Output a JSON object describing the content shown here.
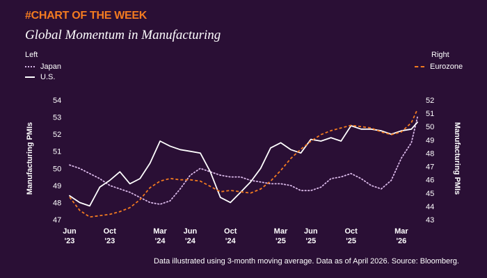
{
  "kicker": "#CHART OF THE WEEK",
  "footer": "Data illustrated using 3-month moving average. Data as of April 2026. Source: Bloomberg.",
  "colors": {
    "background": "#2a0f35",
    "kicker": "#f47b20",
    "japan": "#d9b8e8",
    "us": "#ffffff",
    "eurozone": "#f47b20"
  },
  "chart_data": {
    "type": "line",
    "title": "Global Momentum in Manufacturing",
    "legend": {
      "left_header": "Left",
      "right_header": "Right",
      "placement": "top"
    },
    "left_axis": {
      "label": "Manufacturing PMIs",
      "ylim": [
        47,
        54
      ],
      "ticks": [
        47,
        48,
        49,
        50,
        51,
        52,
        53,
        54
      ]
    },
    "right_axis": {
      "label": "Manufacturing PMIs",
      "ylim": [
        43,
        52
      ],
      "ticks": [
        43,
        44,
        45,
        46,
        47,
        48,
        49,
        50,
        51,
        52
      ]
    },
    "x_ticks": [
      {
        "month": 0,
        "line1": "Jun",
        "line2": "'23"
      },
      {
        "month": 4,
        "line1": "Oct",
        "line2": "'23"
      },
      {
        "month": 9,
        "line1": "Mar",
        "line2": "'24"
      },
      {
        "month": 12,
        "line1": "Jun",
        "line2": "'24"
      },
      {
        "month": 16,
        "line1": "Oct",
        "line2": "'24"
      },
      {
        "month": 21,
        "line1": "Mar",
        "line2": "'25"
      },
      {
        "month": 24,
        "line1": "Jun",
        "line2": "'25"
      },
      {
        "month": 28,
        "line1": "Oct",
        "line2": "'25"
      },
      {
        "month": 33,
        "line1": "Mar",
        "line2": "'26"
      }
    ],
    "x_range": [
      0,
      34.6
    ],
    "series": [
      {
        "name": "Japan",
        "axis": "left",
        "style": "dotted",
        "color": "#d9b8e8",
        "values": [
          [
            0,
            50.2
          ],
          [
            1,
            50.0
          ],
          [
            2,
            49.7
          ],
          [
            3,
            49.4
          ],
          [
            4,
            49.0
          ],
          [
            5,
            48.8
          ],
          [
            6,
            48.6
          ],
          [
            7,
            48.3
          ],
          [
            8,
            48.0
          ],
          [
            9,
            47.9
          ],
          [
            10,
            48.1
          ],
          [
            11,
            48.8
          ],
          [
            12,
            49.6
          ],
          [
            13,
            50.0
          ],
          [
            14,
            49.8
          ],
          [
            15,
            49.6
          ],
          [
            16,
            49.5
          ],
          [
            17,
            49.5
          ],
          [
            18,
            49.3
          ],
          [
            19,
            49.2
          ],
          [
            20,
            49.1
          ],
          [
            21,
            49.1
          ],
          [
            22,
            49.0
          ],
          [
            23,
            48.7
          ],
          [
            24,
            48.7
          ],
          [
            25,
            48.9
          ],
          [
            26,
            49.4
          ],
          [
            27,
            49.5
          ],
          [
            28,
            49.7
          ],
          [
            29,
            49.4
          ],
          [
            30,
            49.0
          ],
          [
            31,
            48.8
          ],
          [
            32,
            49.3
          ],
          [
            33,
            50.6
          ],
          [
            34,
            51.5
          ],
          [
            34.6,
            53.0
          ]
        ]
      },
      {
        "name": "U.S.",
        "axis": "left",
        "style": "solid",
        "color": "#ffffff",
        "values": [
          [
            0,
            48.4
          ],
          [
            1,
            48.0
          ],
          [
            2,
            47.8
          ],
          [
            3,
            48.9
          ],
          [
            4,
            49.3
          ],
          [
            5,
            49.8
          ],
          [
            6,
            49.1
          ],
          [
            7,
            49.4
          ],
          [
            8,
            50.3
          ],
          [
            9,
            51.6
          ],
          [
            10,
            51.3
          ],
          [
            11,
            51.1
          ],
          [
            12,
            51.0
          ],
          [
            13,
            50.9
          ],
          [
            14,
            49.8
          ],
          [
            15,
            48.3
          ],
          [
            16,
            48.0
          ],
          [
            17,
            48.6
          ],
          [
            18,
            49.2
          ],
          [
            19,
            50.0
          ],
          [
            20,
            51.2
          ],
          [
            21,
            51.5
          ],
          [
            22,
            51.1
          ],
          [
            23,
            50.9
          ],
          [
            24,
            51.7
          ],
          [
            25,
            51.6
          ],
          [
            26,
            51.8
          ],
          [
            27,
            51.6
          ],
          [
            28,
            52.5
          ],
          [
            29,
            52.3
          ],
          [
            30,
            52.3
          ],
          [
            31,
            52.2
          ],
          [
            32,
            52.0
          ],
          [
            33,
            52.2
          ],
          [
            34,
            52.3
          ],
          [
            34.6,
            52.7
          ]
        ]
      },
      {
        "name": "Eurozone",
        "axis": "right",
        "style": "dashed",
        "color": "#f47b20",
        "values": [
          [
            0,
            44.7
          ],
          [
            1,
            43.7
          ],
          [
            2,
            43.2
          ],
          [
            3,
            43.3
          ],
          [
            4,
            43.4
          ],
          [
            5,
            43.6
          ],
          [
            6,
            43.9
          ],
          [
            7,
            44.5
          ],
          [
            8,
            45.4
          ],
          [
            9,
            45.9
          ],
          [
            10,
            46.1
          ],
          [
            11,
            46.0
          ],
          [
            12,
            46.0
          ],
          [
            13,
            45.9
          ],
          [
            14,
            45.5
          ],
          [
            15,
            45.1
          ],
          [
            16,
            45.2
          ],
          [
            17,
            45.1
          ],
          [
            18,
            45.0
          ],
          [
            19,
            45.3
          ],
          [
            20,
            45.9
          ],
          [
            21,
            46.7
          ],
          [
            22,
            47.6
          ],
          [
            23,
            48.3
          ],
          [
            24,
            48.9
          ],
          [
            25,
            49.4
          ],
          [
            26,
            49.7
          ],
          [
            27,
            49.9
          ],
          [
            28,
            50.1
          ],
          [
            29,
            50.0
          ],
          [
            30,
            49.9
          ],
          [
            31,
            49.6
          ],
          [
            32,
            49.4
          ],
          [
            33,
            49.6
          ],
          [
            34,
            50.3
          ],
          [
            34.6,
            51.3
          ]
        ]
      }
    ]
  }
}
